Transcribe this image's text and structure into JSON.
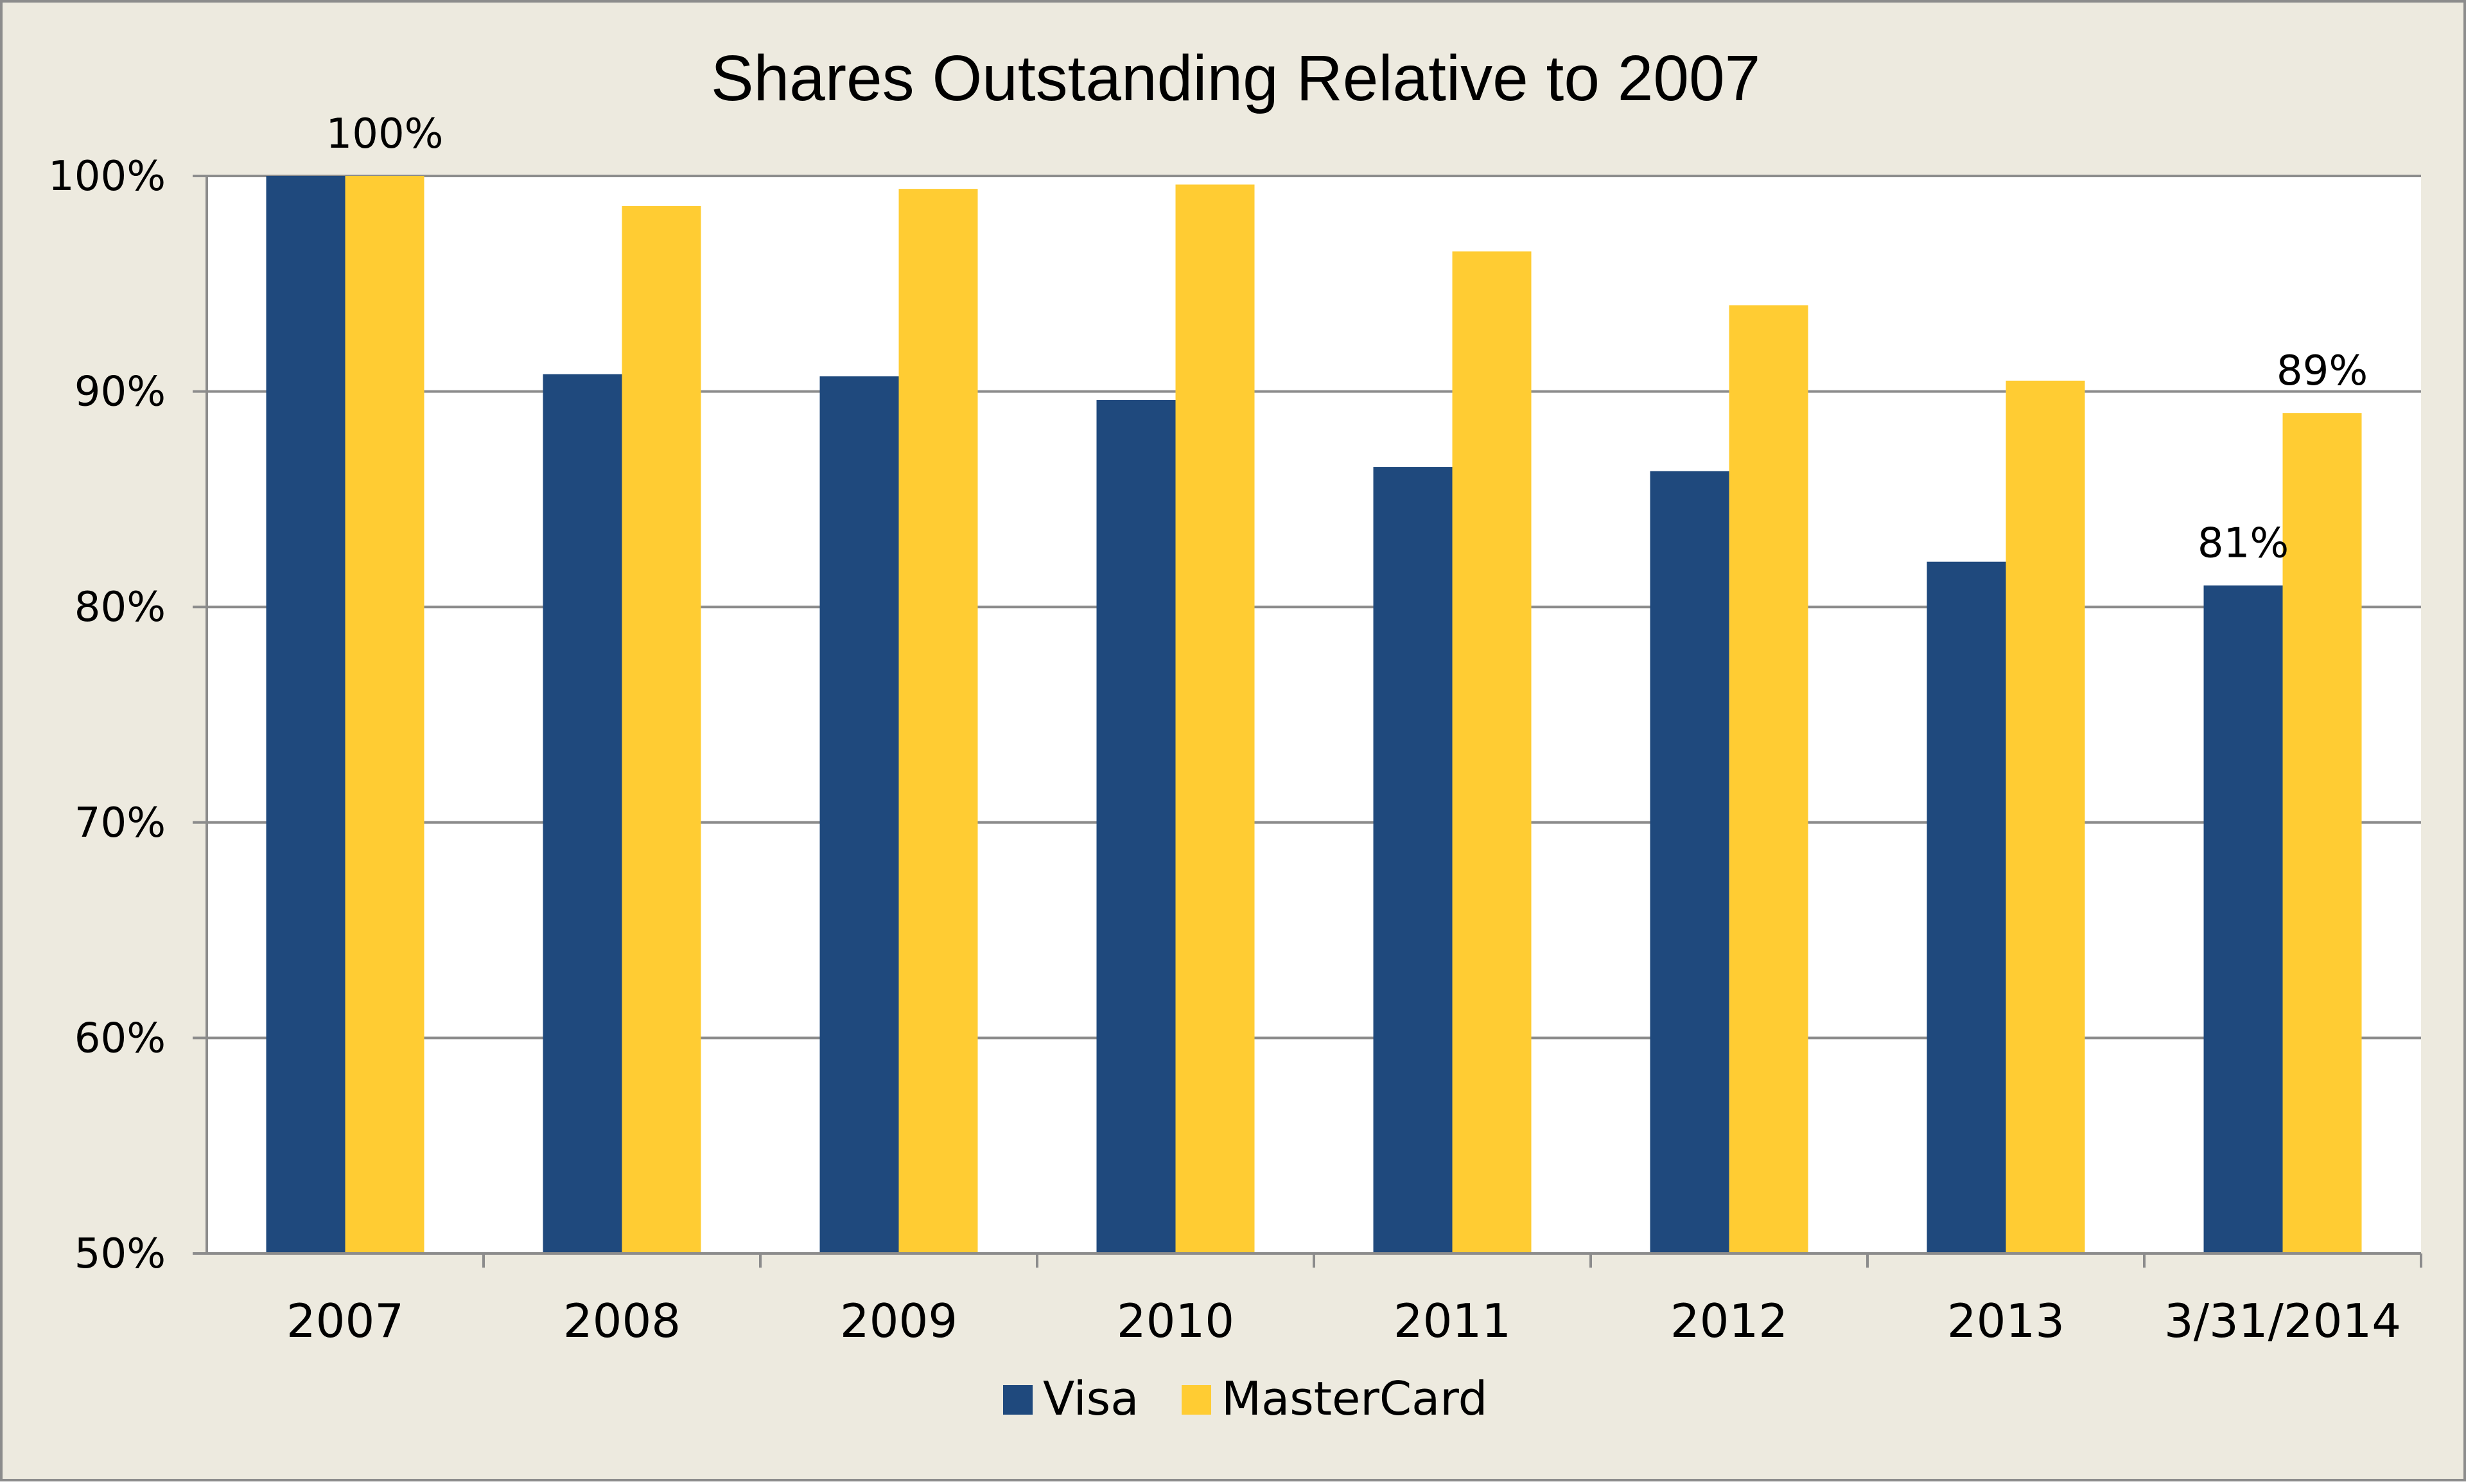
{
  "chart_data": {
    "type": "bar",
    "title": "Shares Outstanding Relative to 2007",
    "xlabel": "",
    "ylabel": "",
    "categories": [
      "2007",
      "2008",
      "2009",
      "2010",
      "2011",
      "2012",
      "2013",
      "3/31/2014"
    ],
    "series": [
      {
        "name": "Visa",
        "color": "#1F497D",
        "values": [
          100,
          90.8,
          90.7,
          89.6,
          86.5,
          86.3,
          82.1,
          81
        ]
      },
      {
        "name": "MasterCard",
        "color": "#FFCC33",
        "values": [
          100,
          98.6,
          99.4,
          99.6,
          96.5,
          94.0,
          90.5,
          89
        ]
      }
    ],
    "ylim": [
      50,
      100
    ],
    "yticks": [
      "50%",
      "60%",
      "70%",
      "80%",
      "90%",
      "100%"
    ],
    "ytick_values": [
      50,
      60,
      70,
      80,
      90,
      100
    ],
    "data_labels": [
      {
        "series": 1,
        "category": 0,
        "text": "100%"
      },
      {
        "series": 0,
        "category": 7,
        "text": "81%"
      },
      {
        "series": 1,
        "category": 7,
        "text": "89%"
      }
    ],
    "grid": true,
    "legend_position": "bottom",
    "background_color": "#EDEADF",
    "plot_background_color": "#FFFFFF"
  }
}
